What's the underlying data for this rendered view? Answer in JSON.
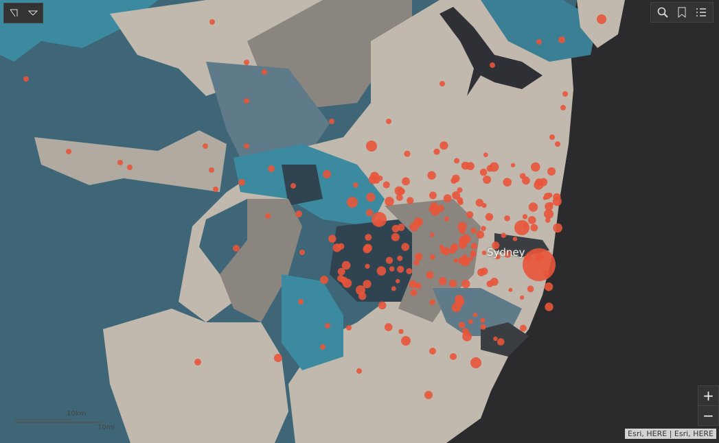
{
  "map": {
    "place_label": "Sydney",
    "attribution": "Esri, HERE | Esri, HERE",
    "scale_bar": {
      "metric": "10km",
      "imperial": "10mi"
    },
    "zoom": {
      "in": "+",
      "out": "−"
    }
  }
}
